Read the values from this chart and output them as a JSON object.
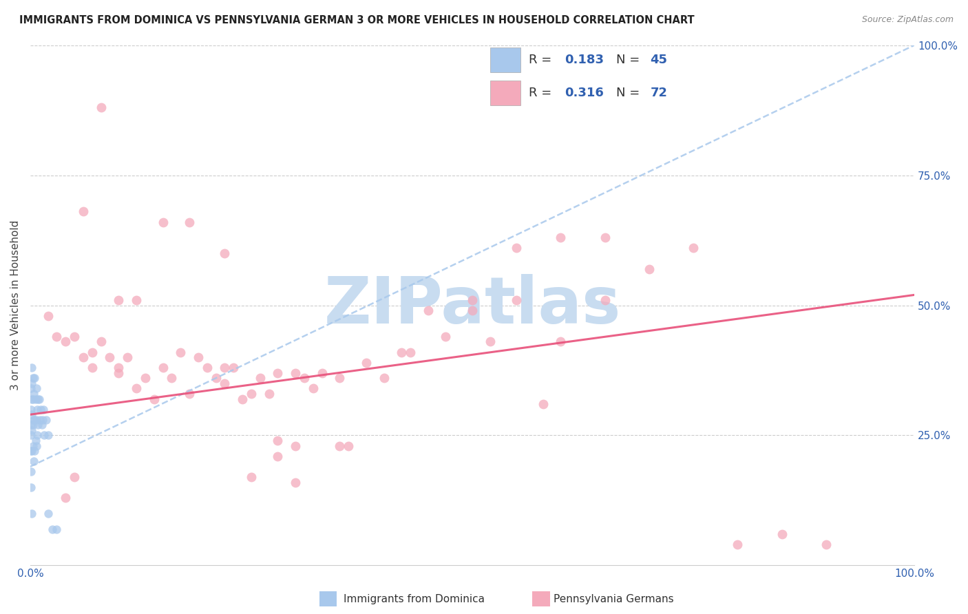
{
  "title": "IMMIGRANTS FROM DOMINICA VS PENNSYLVANIA GERMAN 3 OR MORE VEHICLES IN HOUSEHOLD CORRELATION CHART",
  "source": "Source: ZipAtlas.com",
  "ylabel": "3 or more Vehicles in Household",
  "legend1_label": "Immigrants from Dominica",
  "legend2_label": "Pennsylvania Germans",
  "R1": 0.183,
  "N1": 45,
  "R2": 0.316,
  "N2": 72,
  "color1": "#A8C8EC",
  "color2": "#F4AABB",
  "trendline1_color": "#A8C8EC",
  "trendline2_color": "#E8507A",
  "watermark": "ZIPatlas",
  "watermark_color": "#C8DCF0",
  "xlim": [
    0.0,
    1.0
  ],
  "ylim": [
    0.0,
    1.0
  ],
  "blue_x": [
    0.001,
    0.001,
    0.001,
    0.001,
    0.001,
    0.001,
    0.001,
    0.002,
    0.002,
    0.002,
    0.002,
    0.002,
    0.002,
    0.002,
    0.003,
    0.003,
    0.003,
    0.003,
    0.004,
    0.004,
    0.004,
    0.005,
    0.005,
    0.005,
    0.006,
    0.006,
    0.007,
    0.007,
    0.007,
    0.008,
    0.008,
    0.009,
    0.009,
    0.01,
    0.011,
    0.012,
    0.013,
    0.014,
    0.015,
    0.016,
    0.018,
    0.02,
    0.02,
    0.025,
    0.03
  ],
  "blue_y": [
    0.34,
    0.3,
    0.27,
    0.25,
    0.22,
    0.18,
    0.15,
    0.38,
    0.35,
    0.32,
    0.29,
    0.26,
    0.22,
    0.1,
    0.36,
    0.32,
    0.27,
    0.23,
    0.33,
    0.28,
    0.2,
    0.36,
    0.28,
    0.22,
    0.32,
    0.24,
    0.34,
    0.28,
    0.23,
    0.3,
    0.25,
    0.32,
    0.27,
    0.32,
    0.28,
    0.3,
    0.27,
    0.28,
    0.3,
    0.25,
    0.28,
    0.25,
    0.1,
    0.07,
    0.07
  ],
  "pink_x": [
    0.02,
    0.03,
    0.04,
    0.05,
    0.06,
    0.07,
    0.07,
    0.08,
    0.09,
    0.1,
    0.1,
    0.11,
    0.12,
    0.13,
    0.14,
    0.15,
    0.16,
    0.17,
    0.18,
    0.19,
    0.2,
    0.21,
    0.22,
    0.22,
    0.23,
    0.24,
    0.25,
    0.26,
    0.27,
    0.28,
    0.28,
    0.3,
    0.3,
    0.31,
    0.32,
    0.33,
    0.35,
    0.35,
    0.36,
    0.38,
    0.4,
    0.42,
    0.43,
    0.45,
    0.47,
    0.5,
    0.52,
    0.55,
    0.58,
    0.6,
    0.65,
    0.7,
    0.75,
    0.8,
    0.28,
    0.22,
    0.18,
    0.15,
    0.12,
    0.1,
    0.08,
    0.06,
    0.05,
    0.04,
    0.25,
    0.3,
    0.85,
    0.9,
    0.5,
    0.55,
    0.6,
    0.65
  ],
  "pink_y": [
    0.48,
    0.44,
    0.43,
    0.44,
    0.4,
    0.41,
    0.38,
    0.43,
    0.4,
    0.38,
    0.37,
    0.4,
    0.34,
    0.36,
    0.32,
    0.38,
    0.36,
    0.41,
    0.33,
    0.4,
    0.38,
    0.36,
    0.35,
    0.38,
    0.38,
    0.32,
    0.33,
    0.36,
    0.33,
    0.37,
    0.24,
    0.37,
    0.23,
    0.36,
    0.34,
    0.37,
    0.36,
    0.23,
    0.23,
    0.39,
    0.36,
    0.41,
    0.41,
    0.49,
    0.44,
    0.49,
    0.43,
    0.61,
    0.31,
    0.43,
    0.63,
    0.57,
    0.61,
    0.04,
    0.21,
    0.6,
    0.66,
    0.66,
    0.51,
    0.51,
    0.88,
    0.68,
    0.17,
    0.13,
    0.17,
    0.16,
    0.06,
    0.04,
    0.51,
    0.51,
    0.63,
    0.51
  ],
  "blue_trend_x": [
    0.0,
    1.0
  ],
  "blue_trend_y": [
    0.19,
    1.0
  ],
  "pink_trend_x": [
    0.0,
    1.0
  ],
  "pink_trend_y": [
    0.29,
    0.52
  ],
  "ytick_labels": [
    "25.0%",
    "50.0%",
    "75.0%",
    "100.0%"
  ],
  "ytick_vals": [
    0.25,
    0.5,
    0.75,
    1.0
  ],
  "xtick_labels_map": {
    "0.0": "0.0%",
    "1.0": "100.0%"
  },
  "grid_color": "#CCCCCC",
  "axis_label_color": "#3060B0",
  "title_color": "#222222",
  "source_color": "#888888"
}
